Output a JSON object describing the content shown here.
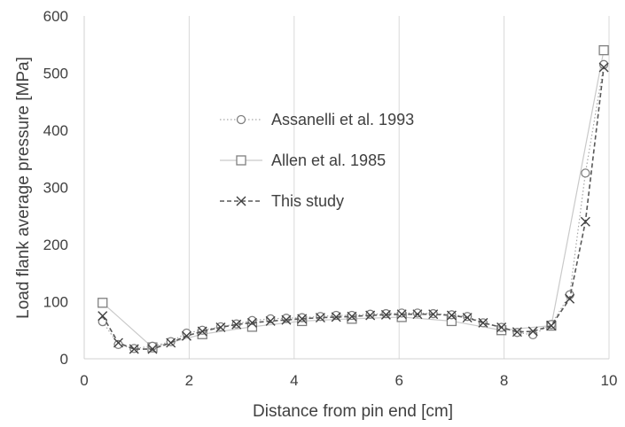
{
  "chart_data": {
    "type": "line",
    "xlabel": "Distance from pin end [cm]",
    "ylabel": "Load flank average pressure [MPa]",
    "xlim": [
      0,
      10
    ],
    "ylim": [
      0,
      600
    ],
    "xticks": [
      0,
      2,
      4,
      6,
      8,
      10
    ],
    "yticks": [
      0,
      100,
      200,
      300,
      400,
      500,
      600
    ],
    "grid": "vertical",
    "legend_position": "center-left",
    "series": [
      {
        "name": "Assanelli et al. 1993",
        "marker": "circle",
        "line_style": "dotted",
        "color": "#a6a6a6",
        "x": [
          0.35,
          0.65,
          0.95,
          1.3,
          1.65,
          1.95,
          2.25,
          2.6,
          2.9,
          3.2,
          3.55,
          3.85,
          4.15,
          4.5,
          4.8,
          5.1,
          5.45,
          5.75,
          6.05,
          6.35,
          6.65,
          7.0,
          7.3,
          7.6,
          7.95,
          8.25,
          8.55,
          8.9,
          9.25,
          9.55,
          9.9
        ],
        "y": [
          65,
          25,
          18,
          22,
          30,
          45,
          50,
          56,
          61,
          67,
          70,
          71,
          72,
          74,
          76,
          76,
          78,
          79,
          80,
          80,
          79,
          77,
          74,
          63,
          55,
          46,
          42,
          60,
          112,
          325,
          515
        ]
      },
      {
        "name": "Allen et al. 1985",
        "marker": "square",
        "line_style": "solid",
        "color": "#c9c9c9",
        "x": [
          0.35,
          1.3,
          2.25,
          3.2,
          4.15,
          5.1,
          6.05,
          7.0,
          7.95,
          8.9,
          9.9
        ],
        "y": [
          98,
          20,
          43,
          56,
          66,
          70,
          73,
          66,
          50,
          58,
          540
        ]
      },
      {
        "name": "This study",
        "marker": "x",
        "line_style": "dashed",
        "color": "#595959",
        "x": [
          0.35,
          0.65,
          0.95,
          1.3,
          1.65,
          1.95,
          2.25,
          2.6,
          2.9,
          3.2,
          3.55,
          3.85,
          4.15,
          4.5,
          4.8,
          5.1,
          5.45,
          5.75,
          6.05,
          6.35,
          6.65,
          7.0,
          7.3,
          7.6,
          7.95,
          8.25,
          8.55,
          8.9,
          9.25,
          9.55,
          9.9
        ],
        "y": [
          75,
          28,
          17,
          17,
          28,
          40,
          48,
          55,
          60,
          63,
          66,
          68,
          70,
          72,
          73,
          74,
          76,
          77,
          78,
          78,
          78,
          76,
          72,
          63,
          55,
          47,
          48,
          58,
          105,
          240,
          510
        ]
      }
    ]
  }
}
